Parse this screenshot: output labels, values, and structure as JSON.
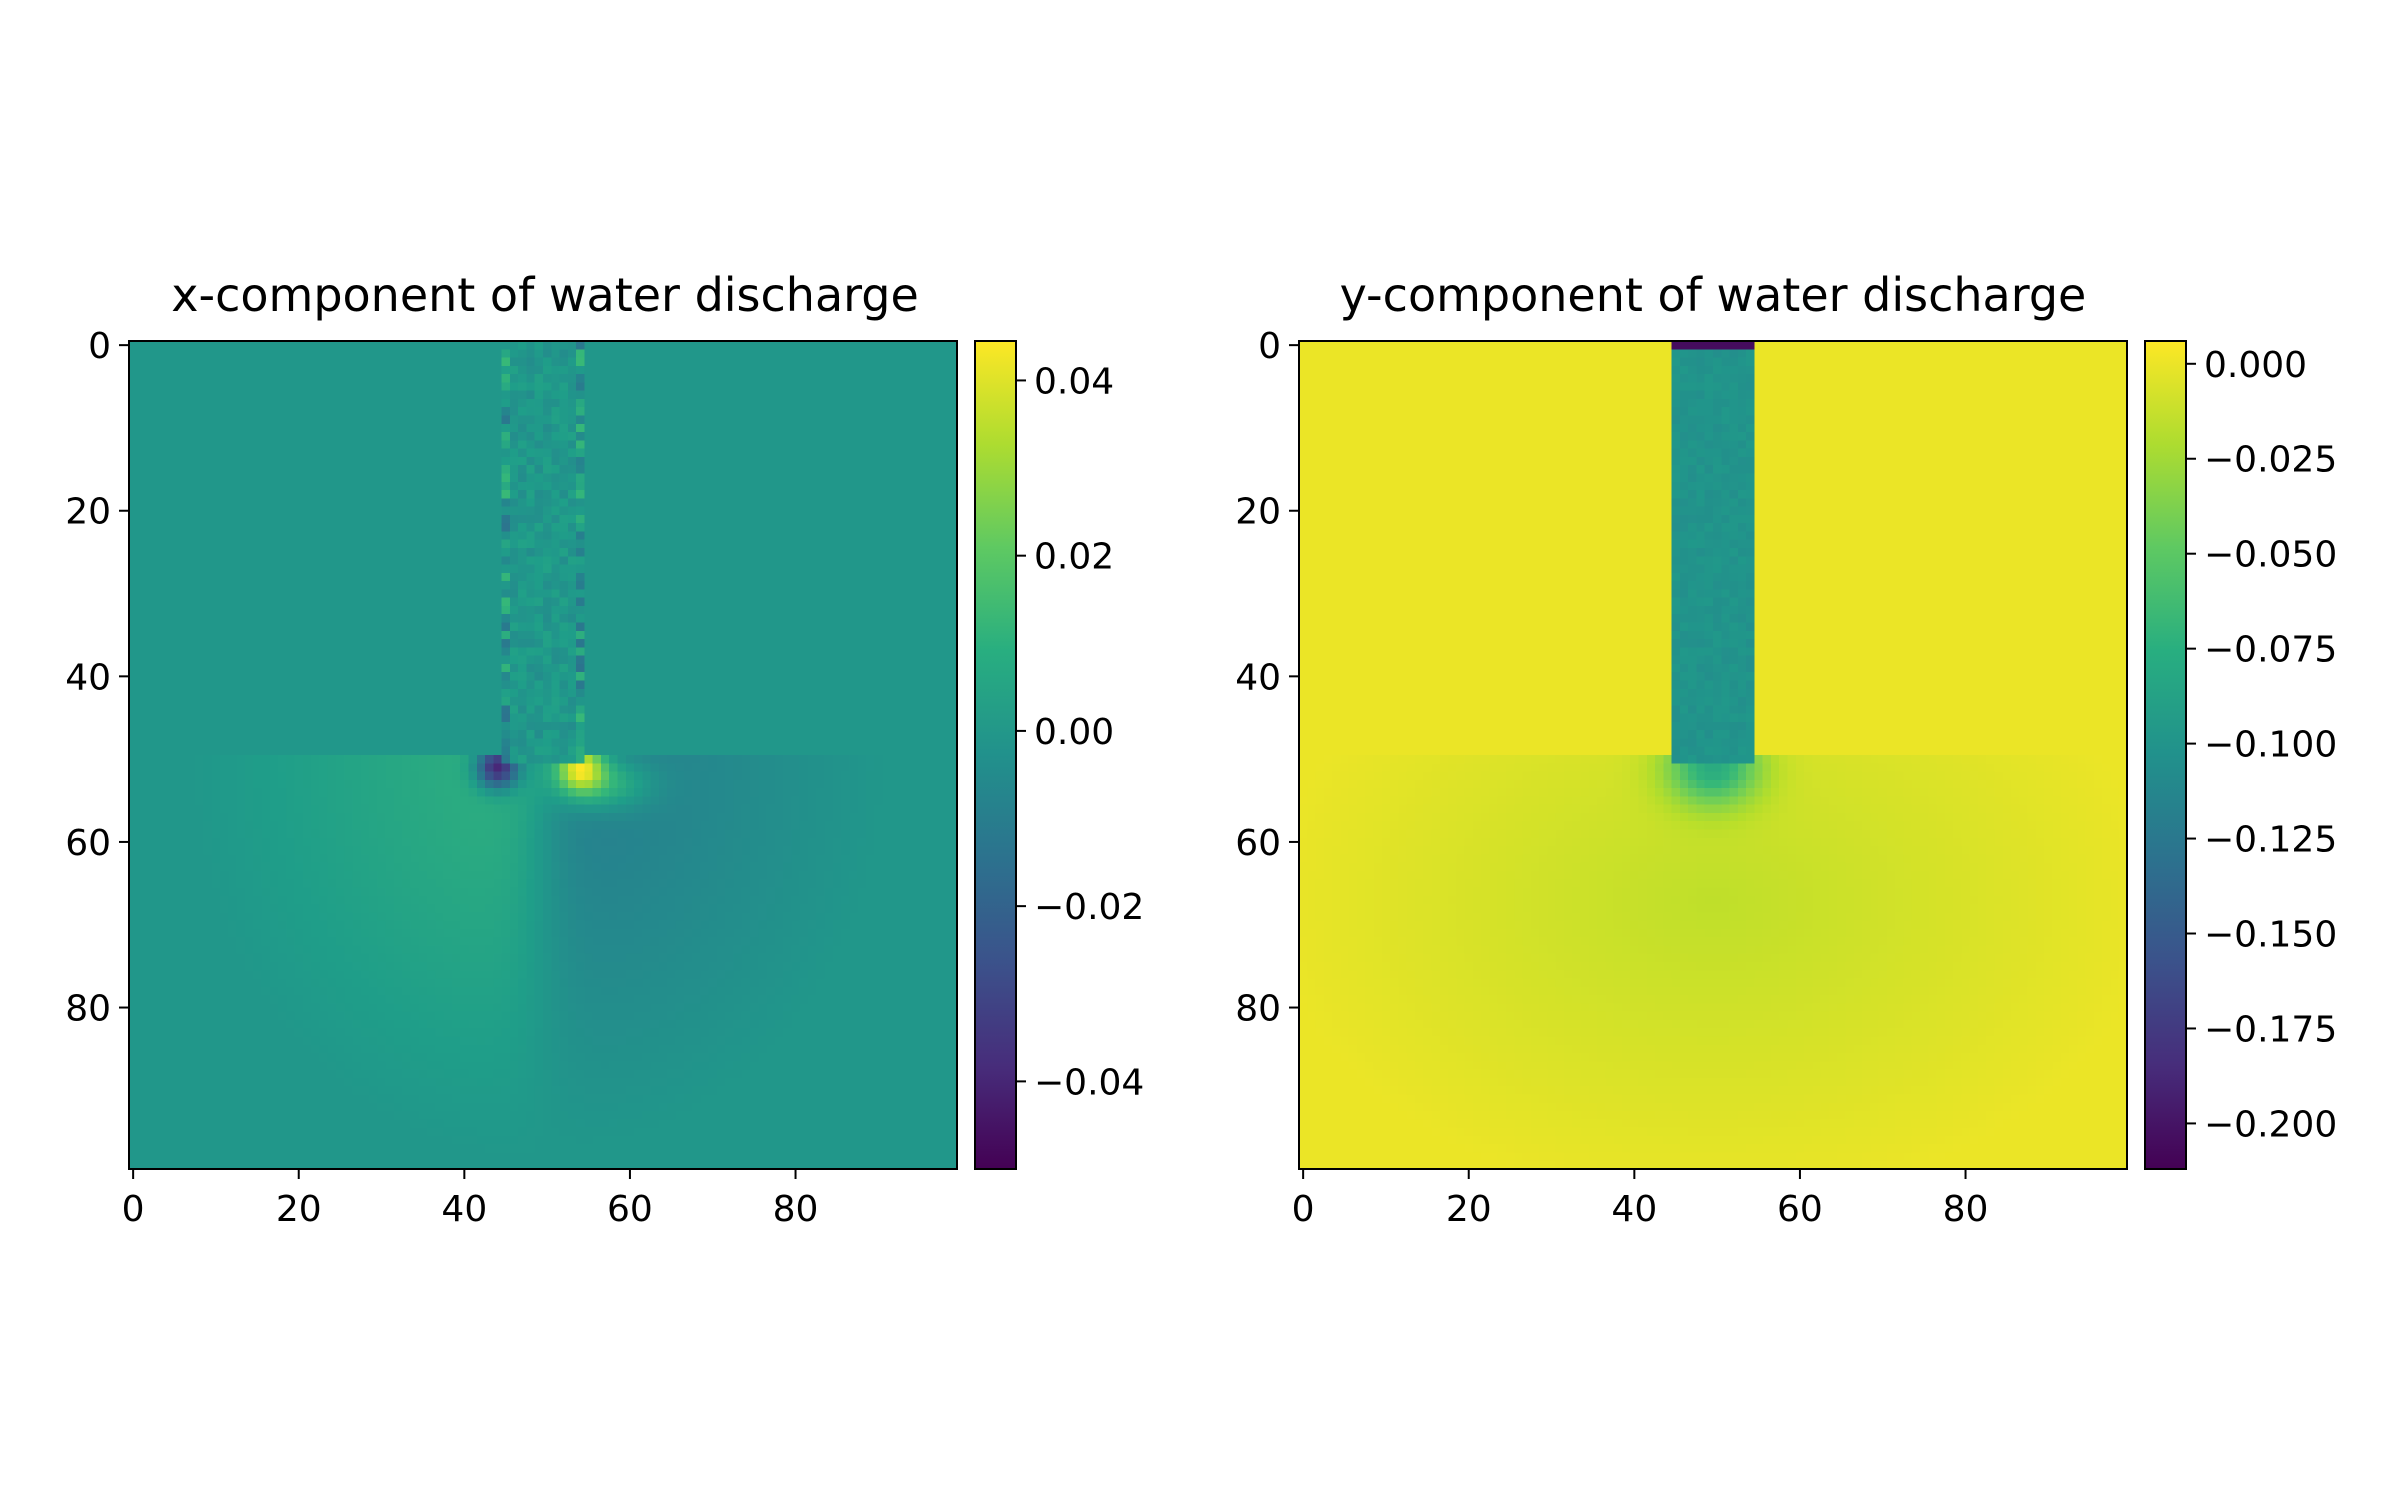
{
  "chart_data": [
    {
      "type": "heatmap",
      "title": "x-component of water discharge",
      "xlim": [
        -0.5,
        99.5
      ],
      "ylim": [
        99.5,
        -0.5
      ],
      "x_ticks": [
        0,
        20,
        40,
        60,
        80
      ],
      "y_ticks": [
        0,
        20,
        40,
        60,
        80
      ],
      "colormap": "viridis",
      "colorbar": {
        "range": [
          -0.05,
          0.0445
        ],
        "ticks": [
          -0.04,
          -0.02,
          0.0,
          0.02,
          0.04
        ],
        "tick_labels": [
          "−0.04",
          "−0.02",
          "0.00",
          "0.02",
          "0.04"
        ]
      },
      "features": {
        "background": 0.0,
        "inlet_channel": {
          "x_range": [
            45,
            54
          ],
          "y_range": [
            0,
            50
          ],
          "values": "alternating noise approx ±0.015"
        },
        "basin": {
          "y_from": 50,
          "center_x": 49.5,
          "radius_x": 42,
          "radius_y": 48
        },
        "extremes": [
          {
            "x": 44,
            "y": 51,
            "value": -0.048
          },
          {
            "x": 54,
            "y": 51,
            "value": 0.044
          }
        ]
      }
    },
    {
      "type": "heatmap",
      "title": "y-component of water discharge",
      "xlim": [
        -0.5,
        99.5
      ],
      "ylim": [
        99.5,
        -0.5
      ],
      "x_ticks": [
        0,
        20,
        40,
        60,
        80
      ],
      "y_ticks": [
        0,
        20,
        40,
        60,
        80
      ],
      "colormap": "viridis",
      "colorbar": {
        "range": [
          -0.212,
          0.006
        ],
        "ticks": [
          0.0,
          -0.025,
          -0.05,
          -0.075,
          -0.1,
          -0.125,
          -0.15,
          -0.175,
          -0.2
        ],
        "tick_labels": [
          "0.000",
          "−0.025",
          "−0.050",
          "−0.075",
          "−0.100",
          "−0.125",
          "−0.150",
          "−0.175",
          "−0.200"
        ]
      },
      "features": {
        "background": 0.0,
        "inlet_channel": {
          "x_range": [
            45,
            54
          ],
          "y_range": [
            0,
            50
          ],
          "value": -0.1
        },
        "inlet_row0": -0.205,
        "basin": {
          "y_from": 50,
          "center_x": 49.5,
          "center_y": 67,
          "radius_x": 38,
          "radius_y": 26,
          "min_value": -0.015
        }
      }
    }
  ]
}
